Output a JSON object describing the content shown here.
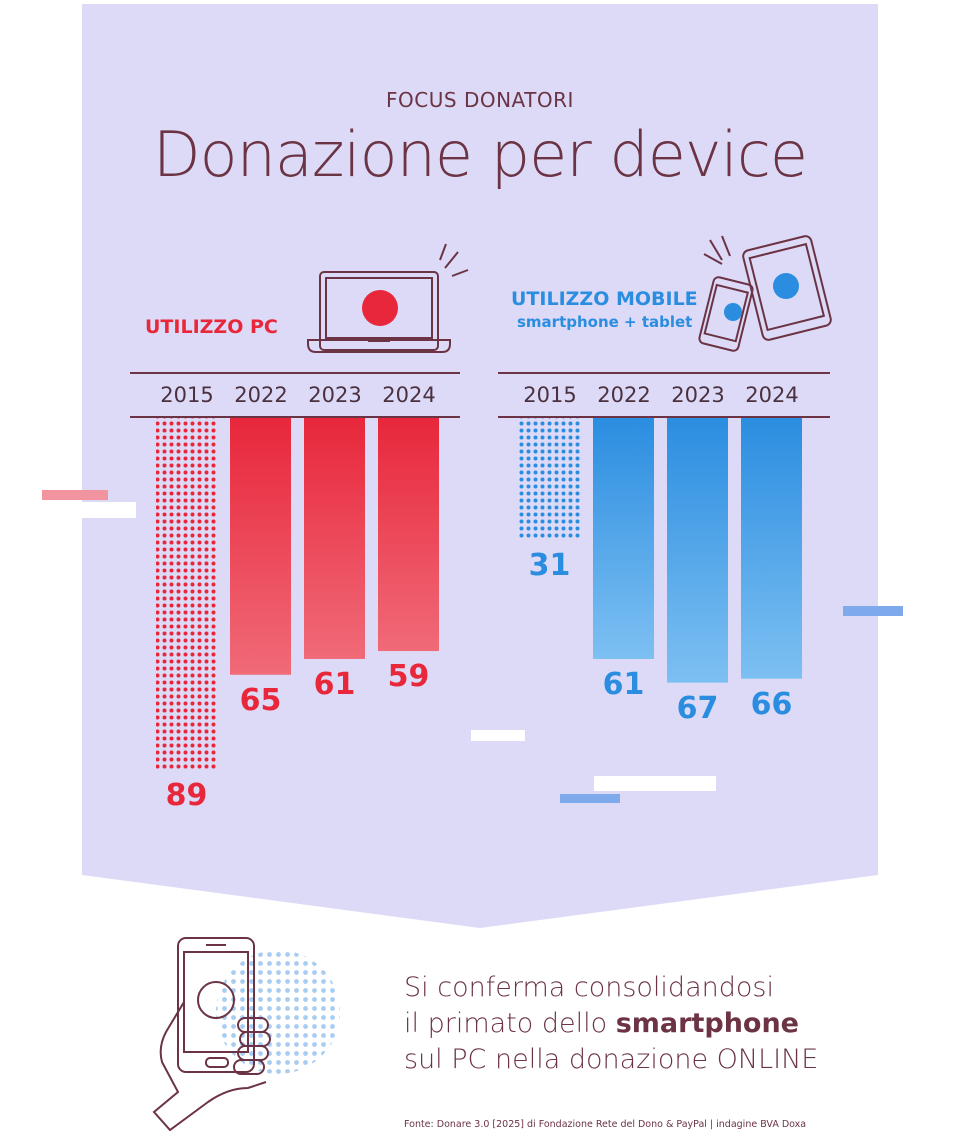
{
  "header": {
    "kicker": "FOCUS DONATORI",
    "title": "Donazione per device"
  },
  "colors": {
    "background_panel": "#dcdaf7",
    "red": "#e8273b",
    "blue": "#2b8de0",
    "text": "#6b3343"
  },
  "chart_data": [
    {
      "type": "bar",
      "title": "UTILIZZO PC",
      "categories": [
        "2015",
        "2022",
        "2023",
        "2024"
      ],
      "values": [
        89,
        65,
        61,
        59
      ],
      "style_note": "2015 bar dotted; 2022-2024 solid red gradient"
    },
    {
      "type": "bar",
      "title": "UTILIZZO MOBILE",
      "subtitle": "smartphone + tablet",
      "categories": [
        "2015",
        "2022",
        "2023",
        "2024"
      ],
      "values": [
        31,
        61,
        67,
        66
      ],
      "style_note": "2015 bar dotted; 2022-2024 solid blue gradient"
    }
  ],
  "caption": {
    "line1": "Si conferma consolidandosi",
    "line2_pre": "il primato dello ",
    "line2_bold": "smartphone",
    "line3": "sul PC nella donazione ONLINE"
  },
  "source": "Fonte: Donare 3.0 [2025] di Fondazione Rete del Dono & PayPal | indagine BVA Doxa",
  "icons": [
    "laptop-icon",
    "smartphone-tablet-icon",
    "hand-phone-icon"
  ]
}
